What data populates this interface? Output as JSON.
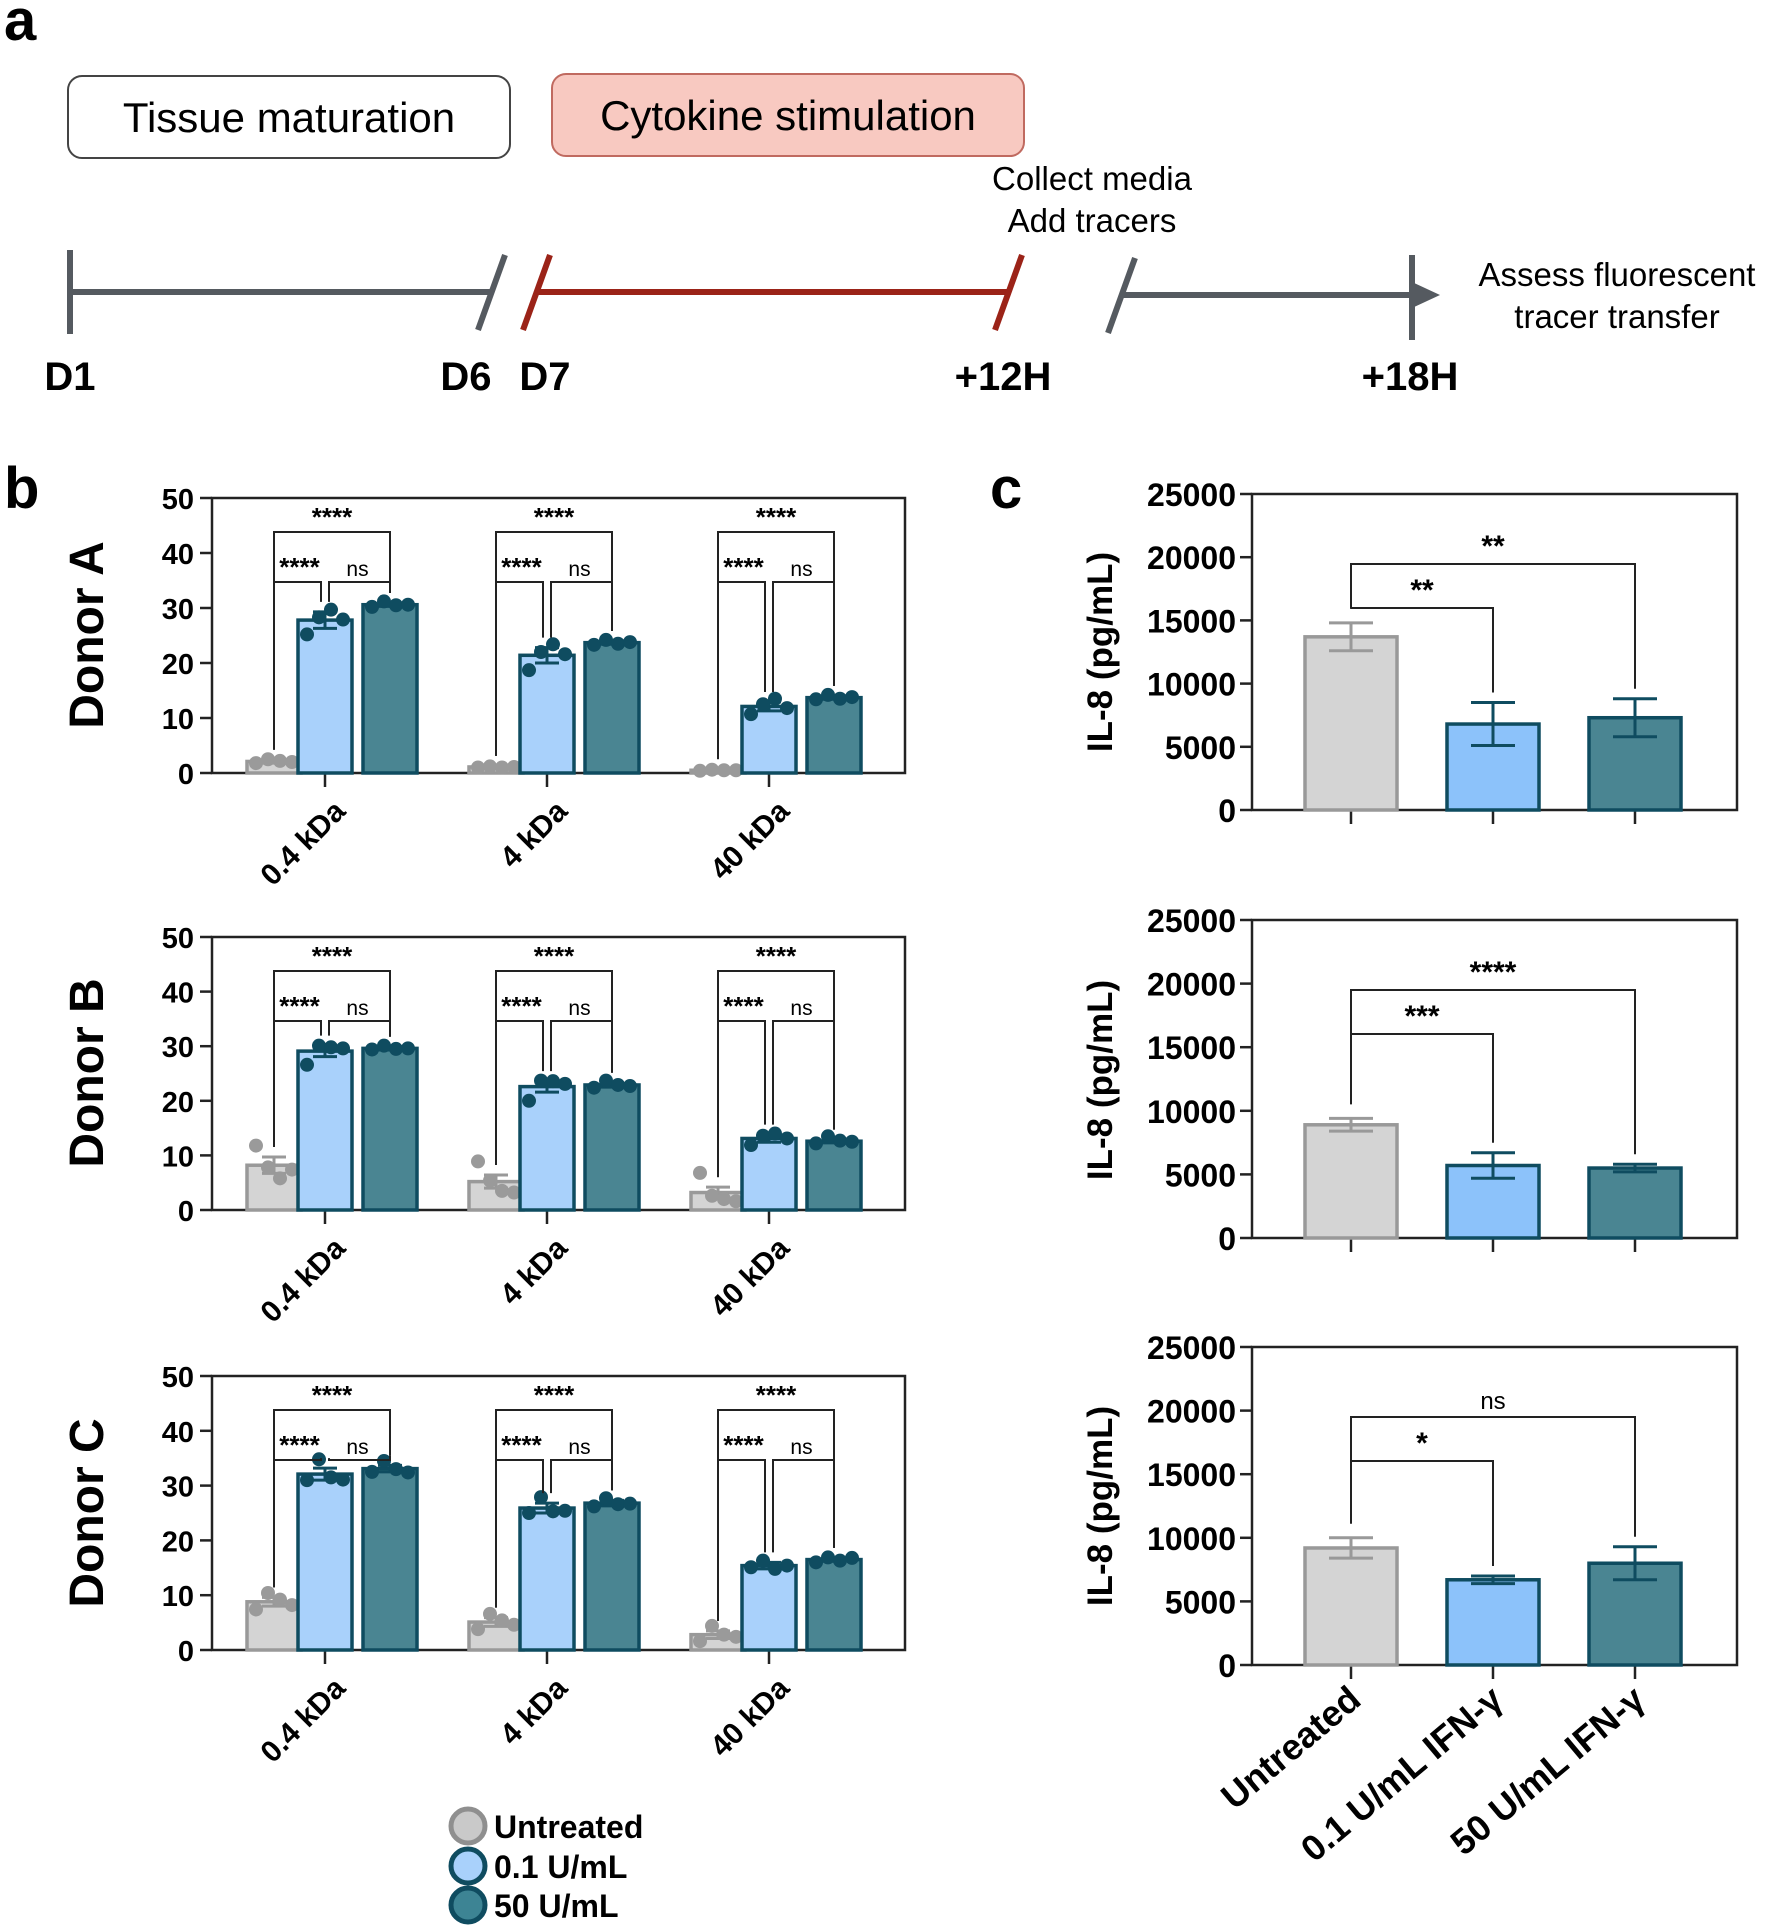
{
  "panel_labels": {
    "a": "a",
    "b": "b",
    "c": "c"
  },
  "timeline": {
    "phase1": "Tissue maturation",
    "phase2": "Cytokine stimulation",
    "annotation_mid_line1": "Collect media",
    "annotation_mid_line2": "Add tracers",
    "annotation_end_line1": "Assess fluorescent",
    "annotation_end_line2": "tracer transfer",
    "days": {
      "d1": "D1",
      "d6": "D6",
      "d7": "D7",
      "h12": "+12H",
      "h18": "+18H"
    },
    "colors": {
      "gray": "#555a60",
      "red": "#9b2318",
      "phase2_fill": "#f8c9c1",
      "phase2_stroke": "#c06a60"
    }
  },
  "legend": {
    "items": [
      {
        "label": "Untreated",
        "fill": "#c9c9c9",
        "stroke": "#8f8f8f"
      },
      {
        "label": "0.1 U/mL",
        "fill": "#a9d1fb",
        "stroke": "#0f4c60"
      },
      {
        "label": "50 U/mL",
        "fill": "#3d8494",
        "stroke": "#0f4c60"
      }
    ]
  },
  "chart_data": [
    {
      "type": "bar",
      "panel": "b",
      "title": "Donor A",
      "categories": [
        "0.4 kDa",
        "4 kDa",
        "40 kDa"
      ],
      "ylim": [
        0,
        50
      ],
      "yticks": [
        0,
        10,
        20,
        30,
        40,
        50
      ],
      "series": [
        {
          "name": "Untreated",
          "values": [
            2.1,
            1.1,
            0.5
          ],
          "sem": [
            0.3,
            0.2,
            0.2
          ],
          "points": [
            [
              1.8,
              2.5,
              2.2,
              2.0
            ],
            [
              1.0,
              1.2,
              1.0,
              1.1
            ],
            [
              0.4,
              0.6,
              0.5,
              0.5
            ]
          ]
        },
        {
          "name": "0.1 U/mL",
          "values": [
            27.8,
            21.4,
            12.1
          ],
          "sem": [
            1.5,
            1.4,
            0.8
          ],
          "points": [
            [
              25.2,
              28.3,
              29.7,
              27.9
            ],
            [
              18.7,
              22.0,
              23.4,
              21.6
            ],
            [
              10.7,
              12.5,
              13.5,
              11.8
            ]
          ]
        },
        {
          "name": "50 U/mL",
          "values": [
            30.6,
            23.7,
            13.7
          ],
          "sem": [
            0.3,
            0.3,
            0.3
          ],
          "points": [
            [
              30.2,
              31.2,
              30.5,
              30.6
            ],
            [
              23.3,
              24.2,
              23.5,
              23.8
            ],
            [
              13.4,
              14.2,
              13.5,
              13.8
            ]
          ]
        }
      ],
      "significance": [
        [
          "****",
          "****",
          "ns",
          "****",
          "****",
          "ns",
          "****",
          "****",
          "ns"
        ]
      ]
    },
    {
      "type": "bar",
      "panel": "b",
      "title": "Donor B",
      "categories": [
        "0.4 kDa",
        "4 kDa",
        "40 kDa"
      ],
      "ylim": [
        0,
        50
      ],
      "yticks": [
        0,
        10,
        20,
        30,
        40,
        50
      ],
      "series": [
        {
          "name": "Untreated",
          "values": [
            8.2,
            5.2,
            3.2
          ],
          "sem": [
            1.5,
            1.2,
            1.0
          ],
          "points": [
            [
              11.8,
              7.8,
              5.8,
              7.4
            ],
            [
              8.9,
              5.4,
              3.5,
              3.2
            ],
            [
              6.8,
              2.6,
              2.0,
              1.6
            ]
          ]
        },
        {
          "name": "0.1 U/mL",
          "values": [
            29.1,
            22.6,
            13.1
          ],
          "sem": [
            1.0,
            1.0,
            0.7
          ],
          "points": [
            [
              26.6,
              30.1,
              29.8,
              29.6
            ],
            [
              20.0,
              23.7,
              23.6,
              23.1
            ],
            [
              11.9,
              13.6,
              14.0,
              13.1
            ]
          ]
        },
        {
          "name": "50 U/mL",
          "values": [
            29.6,
            22.9,
            12.6
          ],
          "sem": [
            0.3,
            0.4,
            0.3
          ],
          "points": [
            [
              29.4,
              30.1,
              29.5,
              29.6
            ],
            [
              22.4,
              23.7,
              22.9,
              22.7
            ],
            [
              12.2,
              13.5,
              12.7,
              12.5
            ]
          ]
        }
      ],
      "significance": [
        [
          "****",
          "****",
          "ns",
          "****",
          "****",
          "ns",
          "****",
          "****",
          "ns"
        ]
      ]
    },
    {
      "type": "bar",
      "panel": "b",
      "title": "Donor C",
      "categories": [
        "0.4 kDa",
        "4 kDa",
        "40 kDa"
      ],
      "ylim": [
        0,
        50
      ],
      "yticks": [
        0,
        10,
        20,
        30,
        40,
        50
      ],
      "series": [
        {
          "name": "Untreated",
          "values": [
            8.8,
            5.1,
            2.8
          ],
          "sem": [
            0.8,
            0.8,
            0.7
          ],
          "points": [
            [
              7.4,
              10.4,
              9.2,
              8.2
            ],
            [
              3.8,
              6.6,
              5.4,
              4.6
            ],
            [
              1.6,
              4.4,
              2.8,
              2.4
            ]
          ]
        },
        {
          "name": "0.1 U/mL",
          "values": [
            32.1,
            25.9,
            15.4
          ],
          "sem": [
            1.1,
            0.9,
            0.6
          ],
          "points": [
            [
              31.0,
              34.8,
              31.5,
              31.1
            ],
            [
              25.0,
              27.9,
              25.3,
              25.4
            ],
            [
              15.1,
              16.3,
              14.8,
              15.4
            ]
          ]
        },
        {
          "name": "50 U/mL",
          "values": [
            33.1,
            26.8,
            16.5
          ],
          "sem": [
            0.6,
            0.5,
            0.3
          ],
          "points": [
            [
              32.5,
              34.5,
              33.0,
              32.4
            ],
            [
              26.2,
              27.7,
              26.6,
              26.7
            ],
            [
              16.0,
              16.9,
              16.3,
              16.8
            ]
          ]
        }
      ],
      "significance": [
        [
          "****",
          "****",
          "ns",
          "****",
          "****",
          "ns",
          "****",
          "****",
          "ns"
        ]
      ]
    },
    {
      "type": "bar",
      "panel": "c",
      "ylabel": "IL-8 (pg/mL)",
      "categories": [
        "Untreated",
        "0.1 U/mL IFN-γ",
        "50 U/mL IFN-γ"
      ],
      "ylim": [
        0,
        25000
      ],
      "yticks": [
        0,
        5000,
        10000,
        15000,
        20000,
        25000
      ],
      "values": [
        13700,
        6800,
        7300
      ],
      "sem": [
        1100,
        1700,
        1500
      ],
      "significance": [
        "**",
        "**"
      ]
    },
    {
      "type": "bar",
      "panel": "c",
      "ylabel": "IL-8 (pg/mL)",
      "categories": [
        "Untreated",
        "0.1 U/mL IFN-γ",
        "50 U/mL IFN-γ"
      ],
      "ylim": [
        0,
        25000
      ],
      "yticks": [
        0,
        5000,
        10000,
        15000,
        20000,
        25000
      ],
      "values": [
        8900,
        5700,
        5500
      ],
      "sem": [
        500,
        1000,
        300
      ],
      "significance": [
        "***",
        "****"
      ]
    },
    {
      "type": "bar",
      "panel": "c",
      "ylabel": "IL-8 (pg/mL)",
      "categories": [
        "Untreated",
        "0.1 U/mL IFN-γ",
        "50 U/mL IFN-γ"
      ],
      "ylim": [
        0,
        25000
      ],
      "yticks": [
        0,
        5000,
        10000,
        15000,
        20000,
        25000
      ],
      "values": [
        9200,
        6700,
        8000
      ],
      "sem": [
        800,
        300,
        1300
      ],
      "significance": [
        "*",
        "ns"
      ]
    }
  ],
  "chart_colors": {
    "untreated_fill": "#d4d4d4",
    "untreated_stroke": "#999999",
    "low_fill": "#a9d1fb",
    "low_fill_c": "#8cc2fa",
    "low_stroke": "#0f4c60",
    "high_fill": "#4a8592",
    "high_stroke": "#0f4c60",
    "dot_untreated": "#9a9a9a",
    "dot_treated": "#0f4c60"
  }
}
